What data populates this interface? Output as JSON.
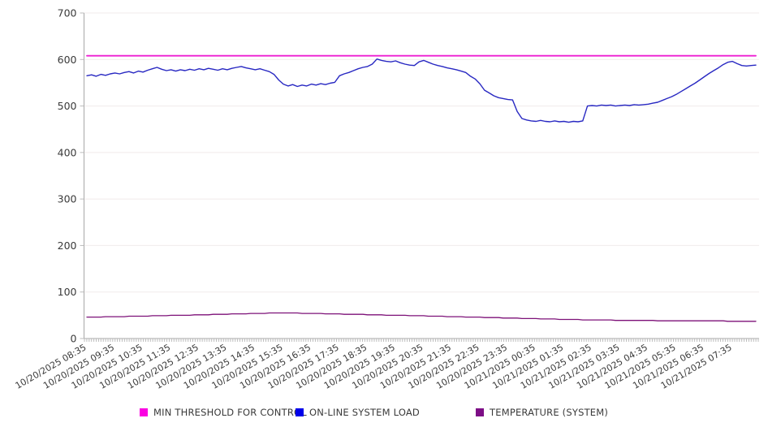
{
  "chart_data": {
    "type": "line",
    "title": "",
    "grid": "horizontal",
    "legend_position": "bottom",
    "y_axis": {
      "min": 0,
      "max": 700,
      "tick_step": 100,
      "ticks": [
        0,
        100,
        200,
        300,
        400,
        500,
        600,
        700
      ]
    },
    "x_axis": {
      "labels": [
        "10/20/2025 08:35",
        "10/20/2025 09:35",
        "10/20/2025 10:35",
        "10/20/2025 11:35",
        "10/20/2025 12:35",
        "10/20/2025 13:35",
        "10/20/2025 14:35",
        "10/20/2025 15:35",
        "10/20/2025 16:35",
        "10/20/2025 17:35",
        "10/20/2025 18:35",
        "10/20/2025 19:35",
        "10/20/2025 20:35",
        "10/20/2025 21:35",
        "10/20/2025 22:35",
        "10/20/2025 23:35",
        "10/21/2025 00:35",
        "10/21/2025 01:35",
        "10/21/2025 02:35",
        "10/21/2025 03:35",
        "10/21/2025 04:35",
        "10/21/2025 05:35",
        "10/21/2025 06:35",
        "10/21/2025 07:35"
      ],
      "points_per_label": 6,
      "minutes_per_point": 10
    },
    "series": [
      {
        "name": "MIN THRESHOLD FOR CONTROL",
        "line_color": "#ee1fd2",
        "swatch_color": "#fb00e2",
        "line_width": 1.8,
        "constant_value": 608
      },
      {
        "name": "ON-LINE SYSTEM LOAD",
        "line_color": "#2828c2",
        "swatch_color": "#0000ea",
        "line_width": 1.4,
        "values": [
          565,
          567,
          564,
          568,
          566,
          569,
          571,
          569,
          572,
          574,
          571,
          575,
          573,
          577,
          580,
          583,
          579,
          576,
          578,
          575,
          578,
          576,
          579,
          577,
          580,
          578,
          581,
          579,
          577,
          580,
          578,
          581,
          583,
          585,
          582,
          580,
          578,
          580,
          577,
          574,
          568,
          556,
          547,
          543,
          546,
          542,
          545,
          543,
          547,
          545,
          548,
          546,
          549,
          551,
          565,
          569,
          572,
          576,
          580,
          583,
          585,
          590,
          601,
          598,
          596,
          595,
          597,
          593,
          590,
          588,
          587,
          595,
          598,
          594,
          590,
          587,
          585,
          582,
          580,
          578,
          575,
          572,
          564,
          558,
          548,
          534,
          528,
          522,
          518,
          516,
          514,
          513,
          488,
          473,
          470,
          468,
          467,
          469,
          467,
          466,
          468,
          466,
          467,
          465,
          467,
          466,
          468,
          500,
          501,
          500,
          502,
          501,
          502,
          500,
          501,
          502,
          501,
          503,
          502,
          503,
          504,
          506,
          508,
          512,
          516,
          520,
          525,
          531,
          537,
          543,
          549,
          556,
          563,
          570,
          576,
          582,
          589,
          594,
          596,
          591,
          587,
          586,
          587,
          588
        ]
      },
      {
        "name": "TEMPERATURE (SYSTEM)",
        "line_color": "#7d1178",
        "swatch_color": "#7d0e86",
        "line_width": 1.3,
        "values": [
          46,
          46,
          46,
          46,
          47,
          47,
          47,
          47,
          47,
          48,
          48,
          48,
          48,
          48,
          49,
          49,
          49,
          49,
          50,
          50,
          50,
          50,
          50,
          51,
          51,
          51,
          51,
          52,
          52,
          52,
          52,
          53,
          53,
          53,
          53,
          54,
          54,
          54,
          54,
          55,
          55,
          55,
          55,
          55,
          55,
          55,
          54,
          54,
          54,
          54,
          54,
          53,
          53,
          53,
          53,
          52,
          52,
          52,
          52,
          52,
          51,
          51,
          51,
          51,
          50,
          50,
          50,
          50,
          50,
          49,
          49,
          49,
          49,
          48,
          48,
          48,
          48,
          47,
          47,
          47,
          47,
          46,
          46,
          46,
          46,
          45,
          45,
          45,
          45,
          44,
          44,
          44,
          44,
          43,
          43,
          43,
          43,
          42,
          42,
          42,
          42,
          41,
          41,
          41,
          41,
          41,
          40,
          40,
          40,
          40,
          40,
          40,
          40,
          39,
          39,
          39,
          39,
          39,
          39,
          39,
          39,
          39,
          38,
          38,
          38,
          38,
          38,
          38,
          38,
          38,
          38,
          38,
          38,
          38,
          38,
          38,
          38,
          37,
          37,
          37,
          37,
          37,
          37,
          37
        ]
      }
    ],
    "colors": {
      "grid_line": "#f1ebeb",
      "axis_line": "#a8a8a8",
      "tick_mark": "#bcbcbc",
      "tick_text": "#3a3a3a",
      "background": "#ffffff"
    }
  }
}
